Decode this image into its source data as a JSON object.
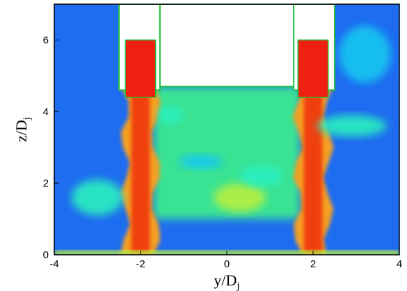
{
  "chart_data": {
    "type": "heatmap",
    "title": "",
    "xlabel": "y/D",
    "xlabel_sub": "j",
    "ylabel": "z/D",
    "ylabel_sub": "j",
    "xlim": [
      -4,
      4
    ],
    "ylim": [
      0,
      7
    ],
    "x_ticks": [
      -4,
      -2,
      0,
      2,
      4
    ],
    "y_ticks": [
      0,
      2,
      4,
      6
    ],
    "x_tick_labels": [
      "-4",
      "-2",
      "0",
      "2",
      "4"
    ],
    "y_tick_labels": [
      "0",
      "2",
      "4",
      "6"
    ],
    "grid": false,
    "legend": "none",
    "colormap": [
      "#0a20d8",
      "#1e6cf0",
      "#19c7f0",
      "#2af0c0",
      "#3cf08a",
      "#b8f040",
      "#f0e030",
      "#f5a020",
      "#f04010",
      "#e01010"
    ],
    "regions": [
      {
        "kind": "background",
        "level": 0.12
      },
      {
        "kind": "cavity",
        "x": [
          -1.7,
          1.7
        ],
        "z": [
          1.0,
          4.7
        ],
        "level": 0.45
      },
      {
        "kind": "jet",
        "x": -2.0,
        "z": [
          0.0,
          6.0
        ],
        "width": 0.55,
        "level": 0.92
      },
      {
        "kind": "jet",
        "x": 2.0,
        "z": [
          0.0,
          6.0
        ],
        "width": 0.55,
        "level": 0.92
      },
      {
        "kind": "blob",
        "x": 0.3,
        "z": 1.6,
        "rx": 0.6,
        "rz": 0.4,
        "level": 0.6
      },
      {
        "kind": "blob",
        "x": -1.3,
        "z": 3.9,
        "rx": 0.3,
        "rz": 0.25,
        "level": 0.3
      },
      {
        "kind": "blob",
        "x": 0.8,
        "z": 2.2,
        "rx": 0.5,
        "rz": 0.3,
        "level": 0.28
      },
      {
        "kind": "blob",
        "x": -0.6,
        "z": 2.6,
        "rx": 0.5,
        "rz": 0.2,
        "level": 0.25
      },
      {
        "kind": "blob",
        "x": 2.9,
        "z": 3.6,
        "rx": 0.8,
        "rz": 0.3,
        "level": 0.3
      },
      {
        "kind": "blob",
        "x": 3.2,
        "z": 5.6,
        "rx": 0.6,
        "rz": 0.8,
        "level": 0.25
      },
      {
        "kind": "blob",
        "x": -3.0,
        "z": 1.6,
        "rx": 0.6,
        "rz": 0.5,
        "level": 0.28
      },
      {
        "kind": "ground",
        "x": [
          -4,
          4
        ],
        "z": [
          0.0,
          0.12
        ],
        "level": 0.55
      }
    ],
    "solid_bodies": [
      {
        "name": "left-nozzle-wall",
        "points": [
          [
            -2.5,
            7.0
          ],
          [
            -2.5,
            4.6
          ],
          [
            -1.55,
            4.6
          ],
          [
            -1.55,
            7.0
          ]
        ]
      },
      {
        "name": "right-nozzle-wall",
        "points": [
          [
            1.55,
            7.0
          ],
          [
            1.55,
            4.6
          ],
          [
            2.5,
            4.6
          ],
          [
            2.5,
            7.0
          ]
        ]
      },
      {
        "name": "left-fin",
        "points": [
          [
            -1.45,
            7.0
          ],
          [
            -1.3,
            7.0
          ],
          [
            -1.3,
            5.1
          ],
          [
            -1.05,
            5.0
          ],
          [
            -1.45,
            5.0
          ]
        ]
      },
      {
        "name": "right-fin",
        "points": [
          [
            1.45,
            7.0
          ],
          [
            1.3,
            7.0
          ],
          [
            1.3,
            5.1
          ],
          [
            1.05,
            5.0
          ],
          [
            1.45,
            5.0
          ]
        ]
      },
      {
        "name": "center-body",
        "points": [
          [
            -1.55,
            7.0
          ],
          [
            -1.55,
            4.7
          ],
          [
            1.55,
            4.7
          ],
          [
            1.55,
            7.0
          ]
        ]
      }
    ],
    "jet_cores": [
      {
        "name": "left-jet-core",
        "x": [
          -2.35,
          -1.65
        ],
        "z": [
          4.4,
          6.0
        ]
      },
      {
        "name": "right-jet-core",
        "x": [
          1.65,
          2.35
        ],
        "z": [
          4.4,
          6.0
        ]
      }
    ]
  }
}
